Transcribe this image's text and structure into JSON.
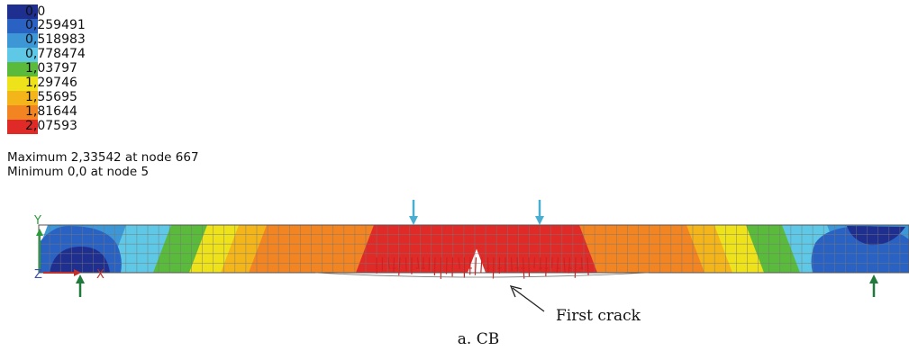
{
  "legend": {
    "levels": [
      {
        "label": "0,0",
        "color": "#1f2f8f"
      },
      {
        "label": "0,259491",
        "color": "#2a62c4"
      },
      {
        "label": "0,518983",
        "color": "#3d97d6"
      },
      {
        "label": "0,778474",
        "color": "#5ec8e6"
      },
      {
        "label": "1,03797",
        "color": "#5aba3c"
      },
      {
        "label": "1,29746",
        "color": "#eee31a"
      },
      {
        "label": "1,55695",
        "color": "#f4b51a"
      },
      {
        "label": "1,81644",
        "color": "#f28422"
      },
      {
        "label": "2,07593",
        "color": "#e02a27"
      }
    ]
  },
  "info": {
    "maximum": "Maximum 2,33542 at node 667",
    "minimum": "Minimum 0,0 at node 5"
  },
  "axes": {
    "y_label": "Y",
    "z_label": "Z",
    "x_label": "X"
  },
  "annotation": {
    "first_crack": "First crack"
  },
  "caption": "a. CB",
  "colors": {
    "crack": "#cc2222",
    "load_arrow": "#4aaed0",
    "support_arrow": "#1f7a3c",
    "mesh": "#777777"
  }
}
